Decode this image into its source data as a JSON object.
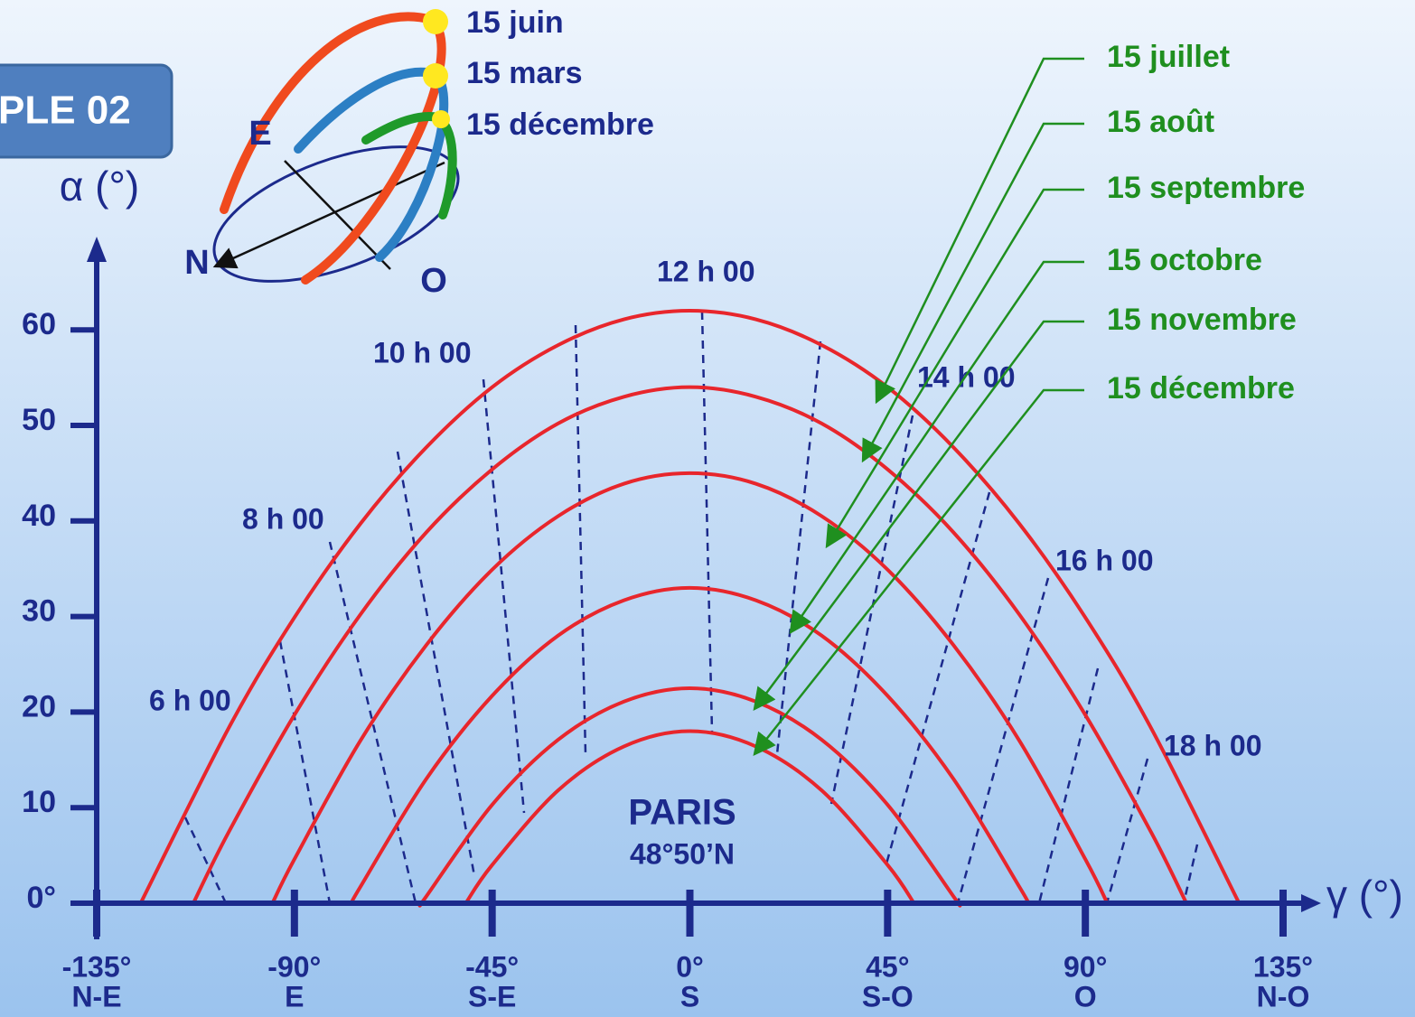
{
  "badge": "PLE 02",
  "inset": {
    "east": "E",
    "north": "N",
    "west": "O",
    "dates": [
      "15 juin",
      "15 mars",
      "15 décembre"
    ]
  },
  "chart_data": {
    "type": "line",
    "ylabel": "α (°)",
    "xlabel": "γ (°)",
    "xlim": [
      -135,
      135
    ],
    "ylim": [
      0,
      70
    ],
    "xticks": [
      {
        "value": -135,
        "label": "-135°"
      },
      {
        "value": -90,
        "label": "-90°"
      },
      {
        "value": -45,
        "label": "-45°"
      },
      {
        "value": 0,
        "label": "0°"
      },
      {
        "value": 45,
        "label": "45°"
      },
      {
        "value": 90,
        "label": "90°"
      },
      {
        "value": 135,
        "label": "135°"
      }
    ],
    "xtick_directions": [
      "N-E",
      "E",
      "S-E",
      "S",
      "S-O",
      "O",
      "N-O"
    ],
    "yticks": [
      {
        "value": 0,
        "label": "0°"
      },
      10,
      20,
      30,
      40,
      50,
      60
    ],
    "legend_color": "#1f8f1f",
    "series": [
      {
        "name": "15 juillet",
        "color": "#e8262c",
        "x": [
          -125,
          -105,
          -90,
          -75,
          -60,
          -45,
          -30,
          -15,
          0,
          15,
          30,
          45,
          60,
          75,
          90,
          105,
          125
        ],
        "values": [
          0,
          18.3,
          29.9,
          39.7,
          47.7,
          54.0,
          58.4,
          61.1,
          62,
          61.1,
          58.4,
          54.0,
          47.7,
          39.7,
          29.9,
          18.3,
          0
        ]
      },
      {
        "name": "15 août",
        "color": "#e8262c",
        "x": [
          -113,
          -105,
          -90,
          -75,
          -60,
          -45,
          -30,
          -15,
          0,
          15,
          30,
          45,
          60,
          75,
          90,
          105,
          113
        ],
        "values": [
          0,
          7.4,
          19.7,
          30.2,
          38.8,
          45.4,
          50.2,
          53.0,
          54,
          53.0,
          50.2,
          45.4,
          38.8,
          30.2,
          19.7,
          7.4,
          0
        ]
      },
      {
        "name": "15 septembre",
        "color": "#e8262c",
        "x": [
          -95,
          -90,
          -75,
          -60,
          -45,
          -30,
          -15,
          0,
          15,
          30,
          45,
          60,
          75,
          90,
          95
        ],
        "values": [
          0,
          4.6,
          17.0,
          27.0,
          34.9,
          40.5,
          43.9,
          45,
          43.9,
          40.5,
          34.9,
          27.0,
          17.0,
          4.6,
          0
        ]
      },
      {
        "name": "15 octobre",
        "color": "#e8262c",
        "x": [
          -77,
          -75,
          -60,
          -45,
          -30,
          -15,
          0,
          15,
          30,
          45,
          60,
          75,
          77
        ],
        "values": [
          0,
          1.7,
          13.0,
          21.7,
          28.0,
          31.7,
          33,
          31.7,
          28.0,
          21.7,
          13.0,
          1.7,
          0
        ]
      },
      {
        "name": "15 novembre",
        "color": "#e8262c",
        "x": [
          -61,
          -60,
          -45,
          -30,
          -15,
          0,
          15,
          30,
          45,
          60,
          61
        ],
        "values": [
          0,
          0.7,
          10.3,
          17.1,
          21.1,
          22.5,
          21.1,
          17.1,
          10.3,
          0.7,
          0
        ]
      },
      {
        "name": "15 décembre",
        "color": "#e8262c",
        "x": [
          -51,
          -45,
          -30,
          -15,
          0,
          15,
          30,
          45,
          51
        ],
        "values": [
          0,
          4.0,
          11.8,
          16.4,
          18,
          16.4,
          11.8,
          4.0,
          0
        ]
      }
    ],
    "hour_labels": [
      "6 h 00",
      "8 h 00",
      "10 h 00",
      "12 h 00",
      "14 h 00",
      "16 h 00",
      "18 h 00"
    ],
    "annotations": [
      "PARIS",
      "48°50’N"
    ]
  }
}
